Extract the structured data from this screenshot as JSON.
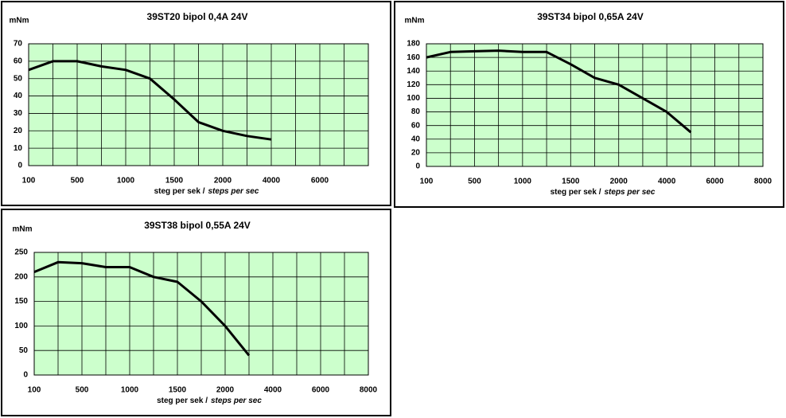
{
  "chart_data": [
    {
      "type": "line",
      "title": "39ST20 bipol 0,4A 24V",
      "y_label": "mNm",
      "x_label": [
        "steg per sek /",
        "steps per sec"
      ],
      "x": [
        100,
        300,
        500,
        750,
        1000,
        1250,
        1500,
        1750,
        2000,
        3000,
        4000
      ],
      "values": [
        55,
        60,
        60,
        57,
        55,
        50,
        38,
        25,
        20,
        17,
        15
      ],
      "color": "#000000",
      "xlim": [
        100,
        8000
      ],
      "xticks": [
        100,
        500,
        1000,
        1500,
        2000,
        4000,
        6000
      ],
      "ylim": [
        0,
        70
      ],
      "yticks": [
        0,
        10,
        20,
        30,
        40,
        50,
        60,
        70
      ],
      "grid": true
    },
    {
      "type": "line",
      "title": "39ST34 bipol 0,65A 24V",
      "y_label": "mNm",
      "x_label": [
        "steg per sek /",
        "steps per sec"
      ],
      "x": [
        100,
        300,
        500,
        750,
        1000,
        1250,
        1500,
        1750,
        2000,
        3000,
        4000,
        5000
      ],
      "values": [
        160,
        168,
        169,
        170,
        168,
        168,
        150,
        130,
        120,
        100,
        80,
        50
      ],
      "color": "#000000",
      "xlim": [
        100,
        8000
      ],
      "xticks": [
        100,
        500,
        1000,
        1500,
        2000,
        4000,
        6000,
        8000
      ],
      "ylim": [
        0,
        180
      ],
      "yticks": [
        0,
        20,
        40,
        60,
        80,
        100,
        120,
        140,
        160,
        180
      ],
      "grid": true
    },
    {
      "type": "line",
      "title": "39ST38 bipol 0,55A 24V",
      "y_label": "mNm",
      "x_label": [
        "steg per sek /",
        "steps per sec"
      ],
      "x": [
        100,
        300,
        500,
        750,
        1000,
        1250,
        1500,
        1750,
        2000,
        3000
      ],
      "values": [
        210,
        230,
        228,
        220,
        220,
        200,
        190,
        150,
        100,
        40
      ],
      "color": "#000000",
      "xlim": [
        100,
        8000
      ],
      "xticks": [
        100,
        500,
        1000,
        1500,
        2000,
        4000,
        6000,
        8000
      ],
      "ylim": [
        0,
        250
      ],
      "yticks": [
        0,
        50,
        100,
        150,
        200,
        250
      ],
      "grid": true
    }
  ]
}
